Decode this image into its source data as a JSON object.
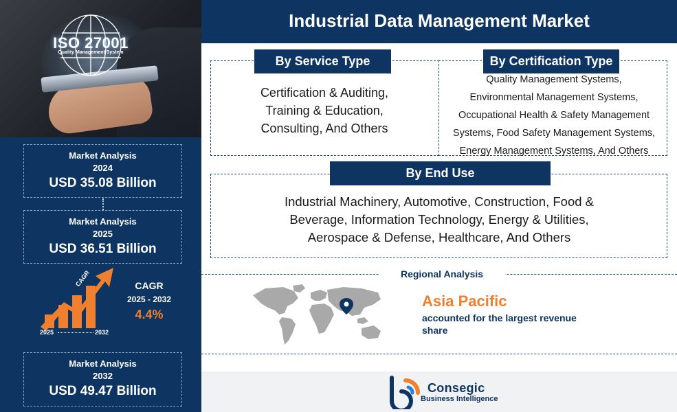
{
  "hero": {
    "iso_title": "ISO 27001",
    "iso_subtitle": "Quality Management System"
  },
  "stats": [
    {
      "label": "Market Analysis",
      "year": "2024",
      "value": "USD 35.08 Billion"
    },
    {
      "label": "Market Analysis",
      "year": "2025",
      "value": "USD 36.51 Billion"
    },
    {
      "label": "Market Analysis",
      "year": "2032",
      "value": "USD 49.47 Billion"
    }
  ],
  "cagr": {
    "tag": "CAGR",
    "label": "CAGR",
    "years": "2025 - 2032",
    "value": "4.4%",
    "axis_start": "2025",
    "axis_end": "2032"
  },
  "header": {
    "title": "Industrial Data Management Market"
  },
  "segments": {
    "service": {
      "title": "By Service Type",
      "lines": [
        "Certification & Auditing,",
        "Training & Education,",
        "Consulting, And Others"
      ]
    },
    "certification": {
      "title": "By Certification Type",
      "lines": [
        "Quality Management Systems,",
        "Environmental Management Systems,",
        "Occupational Health & Safety Management",
        "Systems, Food Safety Management Systems,",
        "Energy Management Systems, And Others"
      ]
    },
    "end_use": {
      "title": "By End Use",
      "lines": [
        "Industrial Machinery, Automotive, Construction, Food &",
        "Beverage, Information Technology, Energy & Utilities,",
        "Aerospace & Defense, Healthcare, And Others"
      ]
    }
  },
  "regional": {
    "title": "Regional Analysis",
    "region": "Asia Pacific",
    "description_line1": "accounted for the largest revenue",
    "description_line2": "share"
  },
  "footer": {
    "logo_name": "Consegic",
    "logo_tagline": "Business Intelligence"
  },
  "colors": {
    "navy": "#0e3561",
    "accent_orange": "#f07f2e",
    "footer_bg": "#f1f2f4"
  }
}
